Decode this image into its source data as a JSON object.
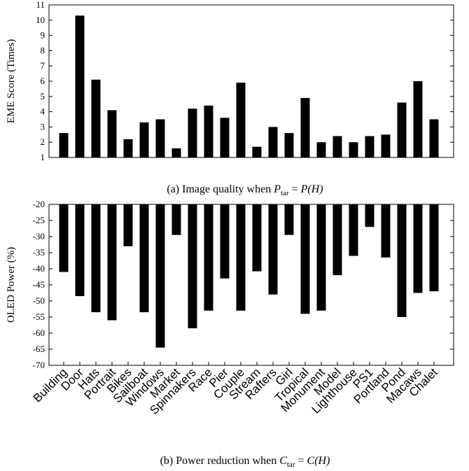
{
  "chart_data": [
    {
      "type": "bar",
      "ylabel": "EME Score (Times)",
      "ylim": [
        1,
        11
      ],
      "yticks": [
        1,
        2,
        3,
        4,
        5,
        6,
        7,
        8,
        9,
        10,
        11
      ],
      "categories": [
        "Building",
        "Door",
        "Hats",
        "Portrait",
        "Bikes",
        "Sailboat",
        "Windows",
        "Market",
        "Spinnakers",
        "Race",
        "Pier",
        "Couple",
        "Stream",
        "Rafters",
        "Girl",
        "Tropical",
        "Monument",
        "Model",
        "Lighthouse",
        "PS1",
        "Portland",
        "Pond",
        "Macaws",
        "Chalet"
      ],
      "values": [
        2.6,
        10.3,
        6.1,
        4.1,
        2.2,
        3.3,
        3.5,
        1.6,
        4.2,
        4.4,
        3.6,
        5.9,
        1.7,
        3.0,
        2.6,
        4.9,
        2.0,
        2.4,
        2.0,
        2.4,
        2.5,
        4.6,
        6.0,
        3.5
      ],
      "show_category_labels": false,
      "caption": {
        "prefix": "(a) Image quality when ",
        "lhs_var": "P",
        "lhs_sub": "tar",
        "equals": " = ",
        "rhs": "P(H)"
      }
    },
    {
      "type": "bar",
      "ylabel": "OLED Power (%)",
      "ylim": [
        -70,
        -20
      ],
      "yticks": [
        -20,
        -25,
        -30,
        -35,
        -40,
        -45,
        -50,
        -55,
        -60,
        -65,
        -70
      ],
      "categories": [
        "Building",
        "Door",
        "Hats",
        "Portrait",
        "Bikes",
        "Sailboat",
        "Windows",
        "Market",
        "Spinnakers",
        "Race",
        "Pier",
        "Couple",
        "Stream",
        "Rafters",
        "Girl",
        "Tropical",
        "Monument",
        "Model",
        "Lighthouse",
        "PS1",
        "Portland",
        "Pond",
        "Macaws",
        "Chalet"
      ],
      "values": [
        -41,
        -48.5,
        -53.5,
        -56,
        -33,
        -53.5,
        -64.5,
        -29.5,
        -58.5,
        -53,
        -43,
        -53,
        -40.8,
        -48,
        -29.5,
        -54,
        -53,
        -42,
        -36,
        -27,
        -36.5,
        -55,
        -47.5,
        -47
      ],
      "show_category_labels": true,
      "caption": {
        "prefix": "(b) Power reduction when ",
        "lhs_var": "C",
        "lhs_sub": "tar",
        "equals": " = ",
        "rhs": "C(H)"
      }
    }
  ]
}
